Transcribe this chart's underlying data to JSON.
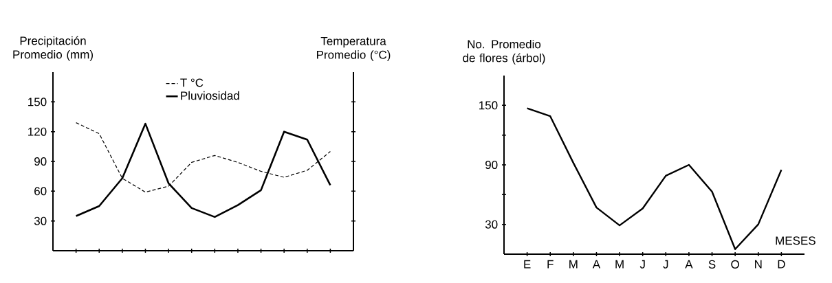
{
  "chart_data": [
    {
      "type": "line",
      "ylabel": "Precipitación Promedio (mm)",
      "y2label": "Temperatura Promedio (°C)",
      "categories": [
        null,
        null,
        null,
        null,
        null,
        null,
        null,
        null,
        null,
        null,
        null,
        null
      ],
      "ylim": [
        0,
        180
      ],
      "yticks": [
        30,
        60,
        90,
        120,
        150
      ],
      "tick_labels": "y",
      "legend": "top",
      "grid": false,
      "series": [
        {
          "name": "T °C",
          "color": "#000000",
          "line_style": "dashed",
          "values": [
            129,
            118,
            73,
            59,
            65,
            89,
            96,
            89,
            80,
            74,
            81,
            100
          ]
        },
        {
          "name": "Pluviosidad",
          "color": "#000000",
          "line_style": "solid",
          "values": [
            35,
            45,
            73,
            128,
            68,
            43,
            34,
            46,
            61,
            120,
            112,
            66
          ]
        }
      ]
    },
    {
      "type": "line",
      "ylabel": "No. Promedio de flores (árbol)",
      "xlabel": "MESES",
      "categories": [
        "E",
        "F",
        "M",
        "A",
        "M",
        "J",
        "J",
        "A",
        "S",
        "O",
        "N",
        "D"
      ],
      "ylim": [
        0,
        180
      ],
      "yticks": [
        30,
        {
          "value": 60,
          "label": null
        },
        90,
        {
          "value": 120,
          "label": null
        },
        150
      ],
      "grid": false,
      "legend": false,
      "series": [
        {
          "color": "#000000",
          "line_style": "solid",
          "values": [
            147,
            139,
            92,
            47,
            29,
            46,
            79,
            90,
            63,
            5,
            30,
            85
          ]
        }
      ]
    }
  ]
}
